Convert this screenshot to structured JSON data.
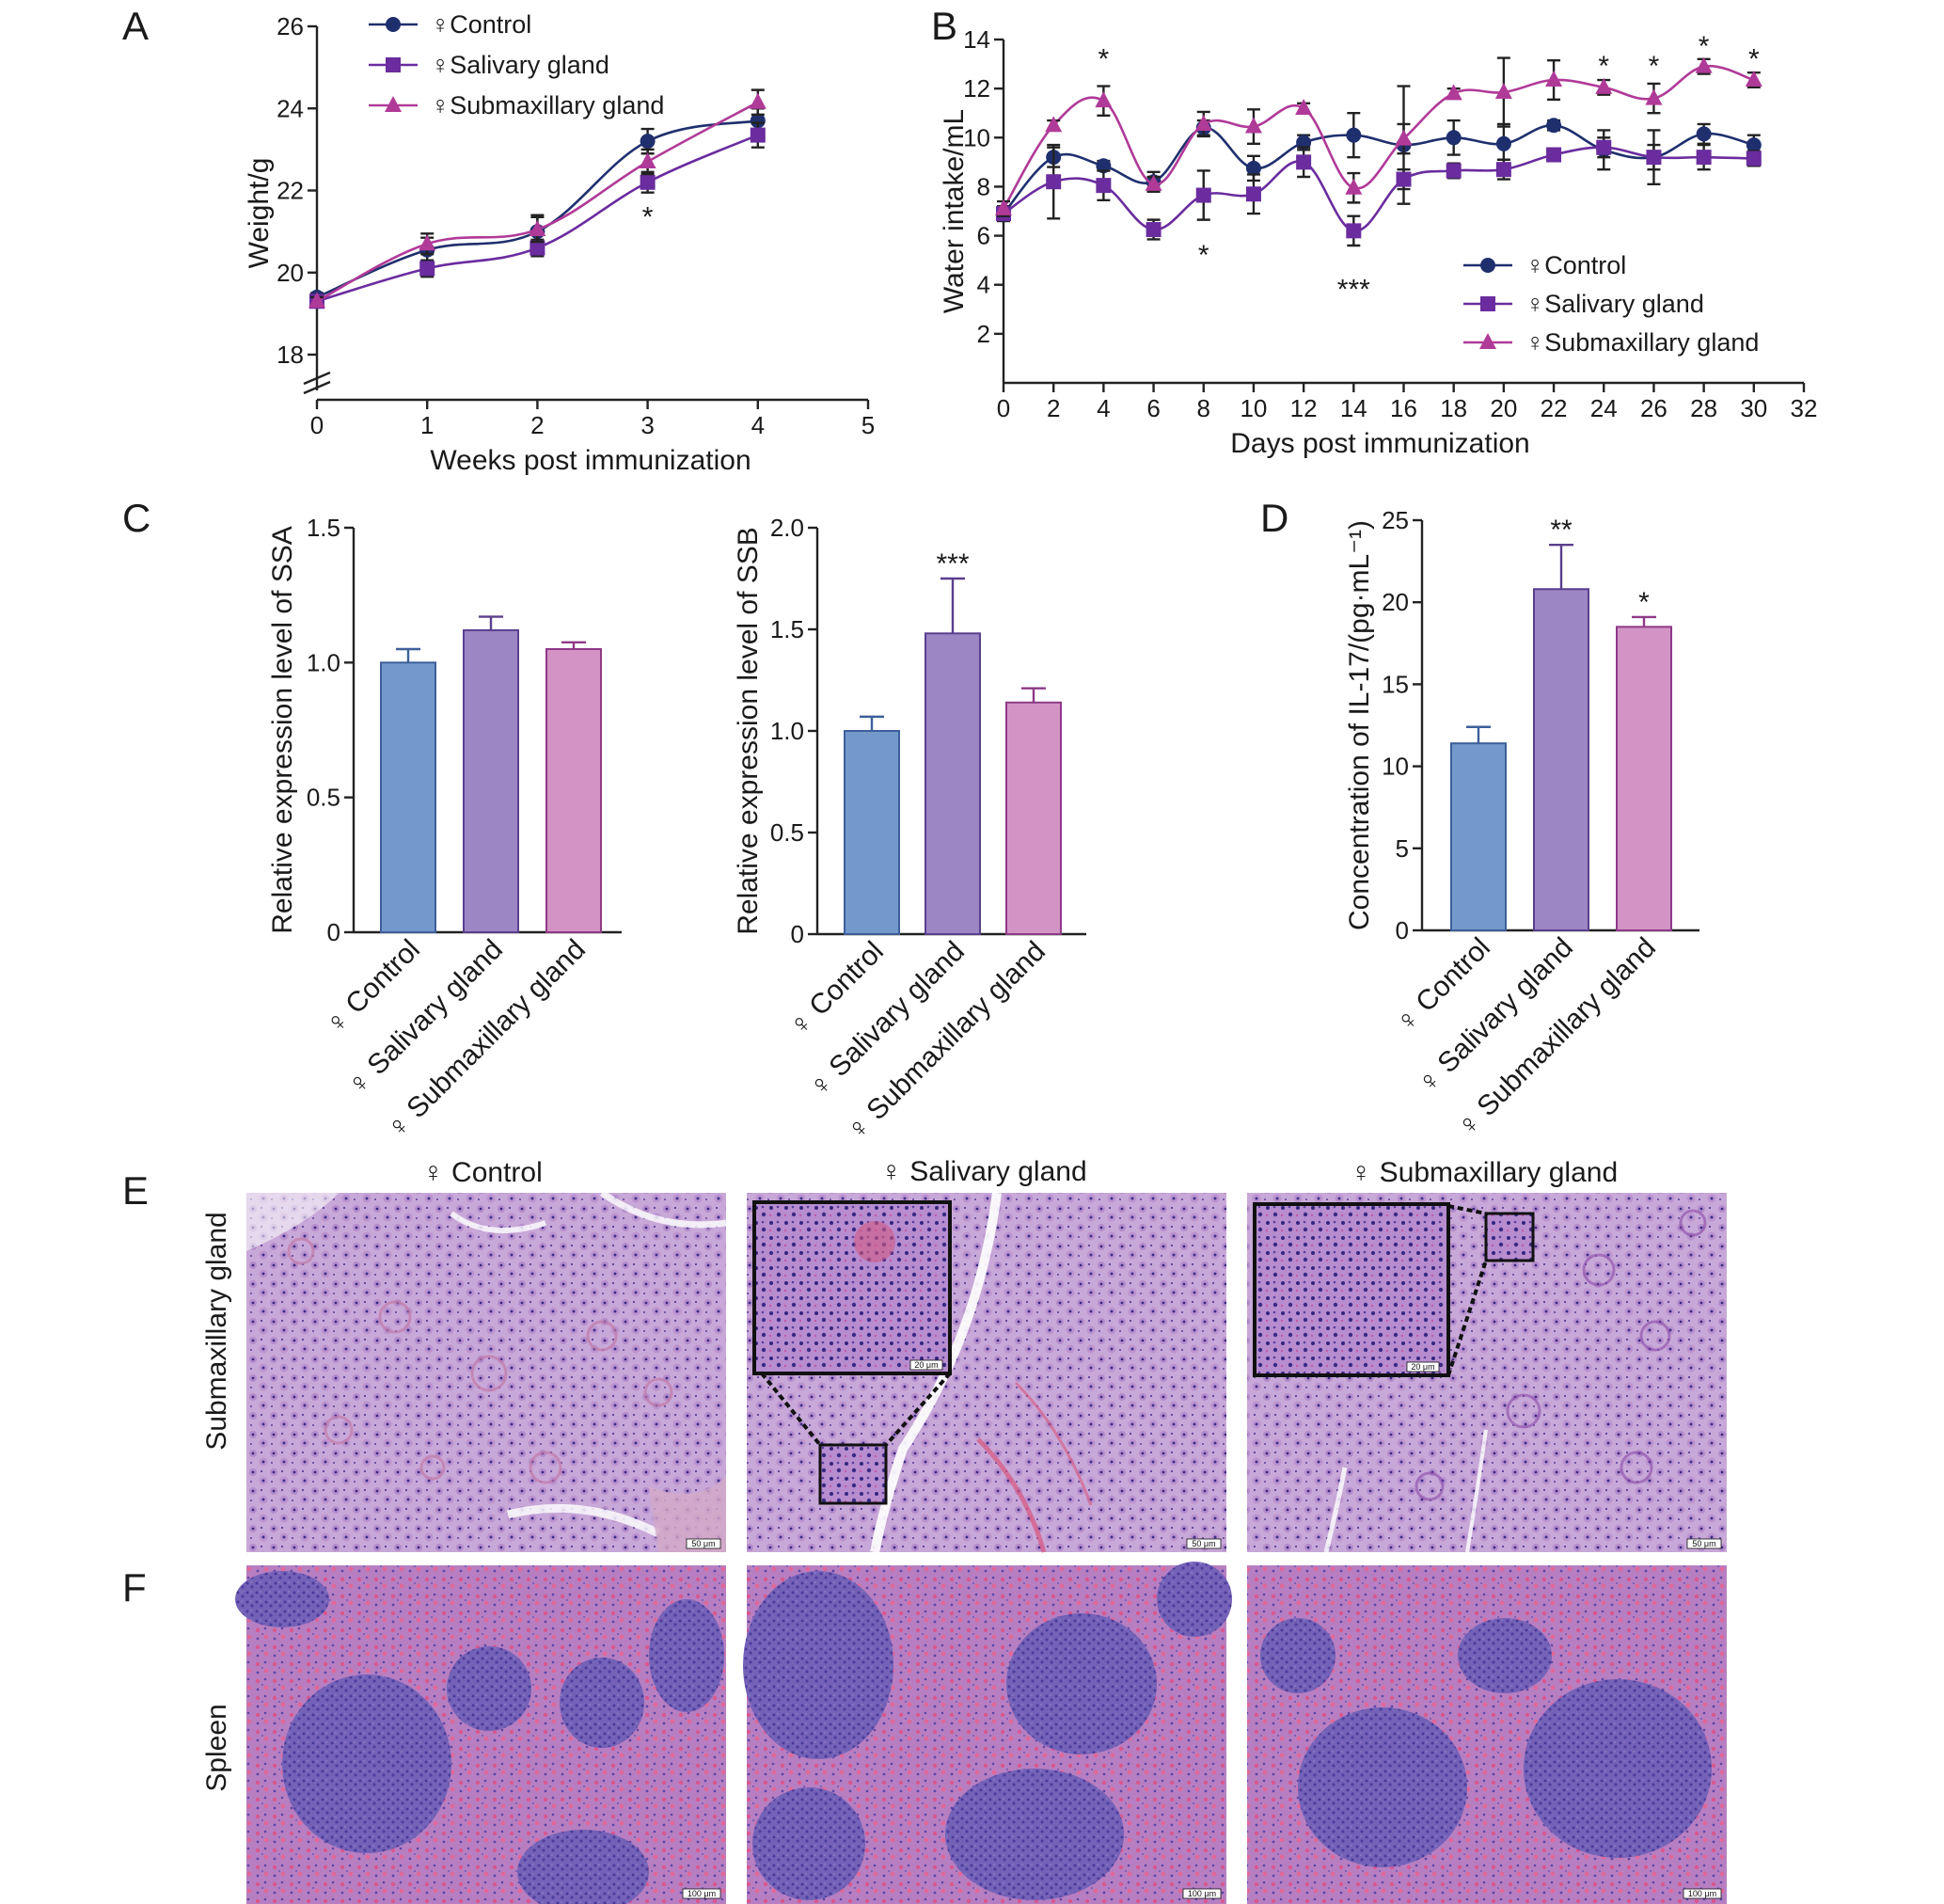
{
  "panel_letters": {
    "A": "A",
    "B": "B",
    "C": "C",
    "D": "D",
    "E": "E",
    "F": "F"
  },
  "colors": {
    "control": "#1f2f6e",
    "salivary": "#6a2c9e",
    "submax": "#b03a98",
    "bar_control": "#7399cb",
    "bar_salivary": "#9d86c4",
    "bar_submax": "#d394c5",
    "bar_edge_control": "#3d5f9a",
    "bar_edge_salivary": "#5a3f8e",
    "bar_edge_submax": "#8e3a87"
  },
  "chart_data": [
    {
      "id": "A",
      "type": "line",
      "xlabel": "Weeks post immunization",
      "ylabel": "Weight/g",
      "x": [
        0,
        1,
        2,
        3,
        4
      ],
      "xticks": [
        0,
        1,
        2,
        3,
        4,
        5
      ],
      "yticks": [
        18,
        20,
        22,
        24,
        26
      ],
      "xlim": [
        0,
        5
      ],
      "ylim": [
        18,
        26
      ],
      "axis_break": true,
      "series": [
        {
          "name": "♀Control",
          "marker": "circle",
          "y": [
            19.4,
            20.55,
            21.0,
            23.2,
            23.7
          ],
          "err": [
            0.1,
            0.3,
            0.4,
            0.3,
            0.3
          ]
        },
        {
          "name": "♀Salivary gland",
          "marker": "square",
          "y": [
            19.3,
            20.1,
            20.6,
            22.2,
            23.35
          ],
          "err": [
            0.1,
            0.2,
            0.2,
            0.25,
            0.3
          ]
        },
        {
          "name": "♀Submaxillary gland",
          "marker": "triangle",
          "y": [
            19.3,
            20.7,
            21.05,
            22.7,
            24.15
          ],
          "err": [
            0.1,
            0.25,
            0.3,
            0.3,
            0.3
          ]
        }
      ],
      "annotations": [
        {
          "x": 3,
          "y": 21.4,
          "text": "*"
        }
      ]
    },
    {
      "id": "B",
      "type": "line",
      "xlabel": "Days post immunization",
      "ylabel": "Water intake/mL",
      "x": [
        0,
        2,
        4,
        6,
        8,
        10,
        12,
        14,
        16,
        18,
        20,
        22,
        24,
        26,
        28,
        30
      ],
      "xticks": [
        0,
        2,
        4,
        6,
        8,
        10,
        12,
        14,
        16,
        18,
        20,
        22,
        24,
        26,
        28,
        30,
        32
      ],
      "yticks": [
        2,
        4,
        6,
        8,
        10,
        12,
        14
      ],
      "xlim": [
        0,
        32
      ],
      "ylim": [
        0,
        14
      ],
      "series": [
        {
          "name": "♀Control",
          "marker": "circle",
          "y": [
            6.9,
            9.2,
            8.85,
            8.2,
            10.4,
            8.75,
            9.8,
            10.1,
            9.7,
            10.0,
            9.75,
            10.5,
            9.5,
            9.2,
            10.15,
            9.7
          ],
          "err": [
            0.3,
            0.4,
            0.2,
            0.4,
            0.3,
            0.5,
            0.3,
            0.9,
            2.4,
            0.7,
            0.8,
            0.2,
            0.8,
            1.1,
            0.4,
            0.4
          ]
        },
        {
          "name": "♀Salivary gland",
          "marker": "square",
          "y": [
            6.9,
            8.2,
            8.05,
            6.25,
            7.65,
            7.7,
            9.0,
            6.2,
            8.3,
            8.65,
            8.7,
            9.3,
            9.6,
            9.2,
            9.2,
            9.15
          ],
          "err": [
            0.3,
            1.5,
            0.6,
            0.4,
            1.0,
            0.8,
            0.6,
            0.6,
            0.4,
            0.3,
            0.4,
            0.2,
            0.4,
            0.5,
            0.5,
            0.3
          ]
        },
        {
          "name": "♀Submaxillary gland",
          "marker": "triangle",
          "y": [
            7.1,
            10.5,
            11.5,
            8.1,
            10.55,
            10.45,
            11.2,
            7.95,
            9.95,
            11.8,
            11.85,
            12.35,
            12.05,
            11.6,
            12.9,
            12.35
          ],
          "err": [
            0.3,
            0.2,
            0.6,
            0.3,
            0.5,
            0.7,
            0.2,
            0.6,
            0.6,
            0.2,
            1.4,
            0.8,
            0.3,
            0.6,
            0.3,
            0.3
          ]
        }
      ],
      "annotations": [
        {
          "x": 4,
          "y": 13.3,
          "text": "*"
        },
        {
          "x": 8,
          "y": 5.3,
          "text": "*"
        },
        {
          "x": 14,
          "y": 3.9,
          "text": "***"
        },
        {
          "x": 24,
          "y": 13.0,
          "text": "*"
        },
        {
          "x": 26,
          "y": 13.0,
          "text": "*"
        },
        {
          "x": 28,
          "y": 13.8,
          "text": "*"
        },
        {
          "x": 30,
          "y": 13.3,
          "text": "*"
        }
      ]
    },
    {
      "id": "C1",
      "type": "bar",
      "ylabel": "Relative expression level of SSA",
      "categories": [
        "♀ Control",
        "♀ Salivary gland",
        "♀ Submaxillary gland"
      ],
      "values": [
        1.0,
        1.12,
        1.05
      ],
      "err": [
        0.05,
        0.05,
        0.025
      ],
      "yticks": [
        "0",
        "0.5",
        "1.0",
        "1.5"
      ],
      "ylim": [
        0,
        1.5
      ],
      "annotations": [
        "",
        "",
        ""
      ]
    },
    {
      "id": "C2",
      "type": "bar",
      "ylabel": "Relative expression level of SSB",
      "categories": [
        "♀ Control",
        "♀ Salivary gland",
        "♀ Submaxillary gland"
      ],
      "values": [
        1.0,
        1.48,
        1.14
      ],
      "err": [
        0.07,
        0.27,
        0.07
      ],
      "yticks": [
        "0",
        "0.5",
        "1.0",
        "1.5",
        "2.0"
      ],
      "ylim": [
        0,
        2
      ],
      "annotations": [
        "",
        "***",
        ""
      ]
    },
    {
      "id": "D",
      "type": "bar",
      "ylabel": "Concentration of IL-17/(pg·mL⁻¹)",
      "categories": [
        "♀ Control",
        "♀ Salivary gland",
        "♀ Submaxillary gland"
      ],
      "values": [
        11.4,
        20.8,
        18.5
      ],
      "err": [
        1.0,
        2.7,
        0.6
      ],
      "yticks": [
        "0",
        "5",
        "10",
        "15",
        "20",
        "25"
      ],
      "ylim": [
        0,
        25
      ],
      "annotations": [
        "",
        "**",
        "*"
      ]
    }
  ],
  "histology": {
    "columns": [
      "♀ Control",
      "♀ Salivary gland",
      "♀ Submaxillary gland"
    ],
    "rows": [
      {
        "label": "Submaxillary gland"
      },
      {
        "label": "Spleen"
      }
    ],
    "scale_bars": {
      "E": "50 μm",
      "F": "100 μm",
      "inset": "20 μm"
    }
  }
}
